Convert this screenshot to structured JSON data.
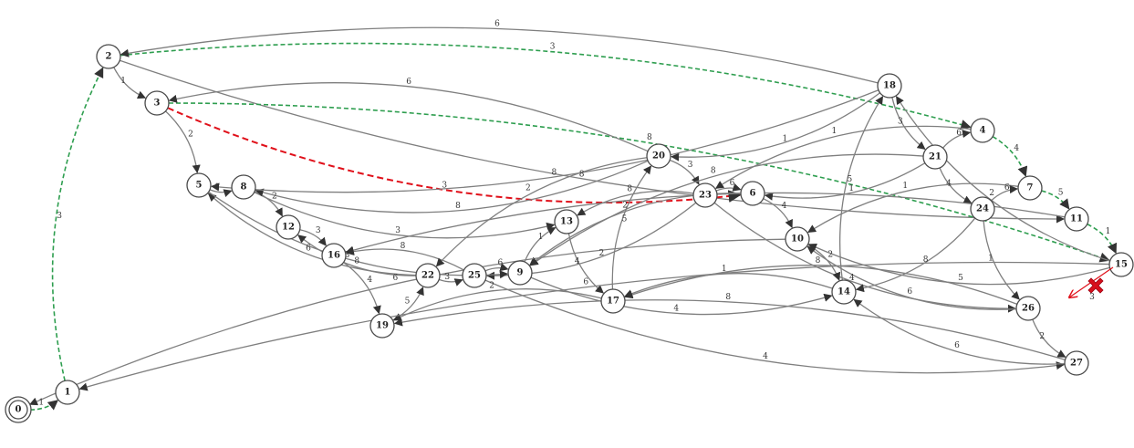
{
  "graph": {
    "nodes": [
      {
        "id": "0",
        "accepting": true
      },
      {
        "id": "1"
      },
      {
        "id": "2"
      },
      {
        "id": "3"
      },
      {
        "id": "4"
      },
      {
        "id": "5"
      },
      {
        "id": "6"
      },
      {
        "id": "7"
      },
      {
        "id": "8"
      },
      {
        "id": "9"
      },
      {
        "id": "10"
      },
      {
        "id": "11"
      },
      {
        "id": "12"
      },
      {
        "id": "13"
      },
      {
        "id": "14"
      },
      {
        "id": "15"
      },
      {
        "id": "16"
      },
      {
        "id": "17"
      },
      {
        "id": "18"
      },
      {
        "id": "19"
      },
      {
        "id": "20"
      },
      {
        "id": "21"
      },
      {
        "id": "22"
      },
      {
        "id": "23"
      },
      {
        "id": "24"
      },
      {
        "id": "25"
      },
      {
        "id": "26"
      },
      {
        "id": "27"
      }
    ],
    "edges": [
      {
        "from": "0",
        "to": "1",
        "weight": "1",
        "style": "green"
      },
      {
        "from": "1",
        "to": "2",
        "weight": "3",
        "style": "green"
      },
      {
        "from": "2",
        "to": "3",
        "weight": "1",
        "style": "normal"
      },
      {
        "from": "2",
        "to": "4",
        "weight": "3",
        "style": "green"
      },
      {
        "from": "2",
        "to": "11",
        "weight": "8",
        "style": "normal"
      },
      {
        "from": "3",
        "to": "5",
        "weight": "2",
        "style": "normal"
      },
      {
        "from": "3",
        "to": "6",
        "weight": "3",
        "style": "red"
      },
      {
        "from": "3",
        "to": "15",
        "weight": "8",
        "style": "green"
      },
      {
        "from": "5",
        "to": "8",
        "weight": "1",
        "style": "normal"
      },
      {
        "from": "8",
        "to": "12",
        "weight": "2",
        "style": "normal"
      },
      {
        "from": "8",
        "to": "13",
        "weight": "3",
        "style": "normal"
      },
      {
        "from": "12",
        "to": "16",
        "weight": "3",
        "style": "normal"
      },
      {
        "from": "13",
        "to": "17",
        "weight": "4",
        "style": "normal"
      },
      {
        "from": "16",
        "to": "19",
        "weight": "4",
        "style": "normal"
      },
      {
        "from": "19",
        "to": "22",
        "weight": "5",
        "style": "normal"
      },
      {
        "from": "22",
        "to": "12",
        "weight": "8",
        "style": "normal"
      },
      {
        "from": "22",
        "to": "25",
        "weight": "3",
        "style": "normal"
      },
      {
        "from": "22",
        "to": "5",
        "weight": "6",
        "style": "normal"
      },
      {
        "from": "25",
        "to": "16",
        "weight": "8",
        "style": "normal"
      },
      {
        "from": "25",
        "to": "9",
        "weight": "6",
        "style": "normal"
      },
      {
        "from": "25",
        "to": "27",
        "weight": "4",
        "style": "normal"
      },
      {
        "from": "9",
        "to": "13",
        "weight": "1",
        "style": "normal"
      },
      {
        "from": "9",
        "to": "14",
        "weight": "4",
        "style": "normal"
      },
      {
        "from": "17",
        "to": "20",
        "weight": "5",
        "style": "normal"
      },
      {
        "from": "17",
        "to": "19",
        "weight": "2",
        "style": "normal"
      },
      {
        "from": "20",
        "to": "8",
        "weight": "8",
        "style": "normal"
      },
      {
        "from": "20",
        "to": "22",
        "weight": "2",
        "style": "normal"
      },
      {
        "from": "20",
        "to": "23",
        "weight": "3",
        "style": "normal"
      },
      {
        "from": "20",
        "to": "3",
        "weight": "6",
        "style": "normal"
      },
      {
        "from": "23",
        "to": "6",
        "weight": "6",
        "style": "normal"
      },
      {
        "from": "23",
        "to": "13",
        "weight": "8",
        "style": "normal"
      },
      {
        "from": "23",
        "to": "25",
        "weight": "2",
        "style": "normal"
      },
      {
        "from": "23",
        "to": "26",
        "weight": "4",
        "style": "normal"
      },
      {
        "from": "6",
        "to": "10",
        "weight": "4",
        "style": "normal"
      },
      {
        "from": "6",
        "to": "9",
        "weight": "2",
        "style": "normal"
      },
      {
        "from": "10",
        "to": "14",
        "weight": "2",
        "style": "normal"
      },
      {
        "from": "10",
        "to": "0",
        "weight": "6",
        "style": "normal"
      },
      {
        "from": "14",
        "to": "18",
        "weight": "5",
        "style": "normal"
      },
      {
        "from": "14",
        "to": "17",
        "weight": "1",
        "style": "normal"
      },
      {
        "from": "18",
        "to": "20",
        "weight": "1",
        "style": "normal"
      },
      {
        "from": "18",
        "to": "21",
        "weight": "3",
        "style": "normal"
      },
      {
        "from": "18",
        "to": "5",
        "weight": "8",
        "style": "normal"
      },
      {
        "from": "18",
        "to": "2",
        "weight": "6",
        "style": "normal"
      },
      {
        "from": "21",
        "to": "4",
        "weight": "6",
        "style": "normal"
      },
      {
        "from": "21",
        "to": "24",
        "weight": "4",
        "style": "normal"
      },
      {
        "from": "21",
        "to": "6",
        "weight": "1",
        "style": "normal"
      },
      {
        "from": "21",
        "to": "9",
        "weight": "8",
        "style": "normal"
      },
      {
        "from": "4",
        "to": "7",
        "weight": "4",
        "style": "green"
      },
      {
        "from": "4",
        "to": "23",
        "weight": "1",
        "style": "normal"
      },
      {
        "from": "7",
        "to": "11",
        "weight": "5",
        "style": "green"
      },
      {
        "from": "7",
        "to": "10",
        "weight": "1",
        "style": "normal"
      },
      {
        "from": "11",
        "to": "15",
        "weight": "1",
        "style": "green"
      },
      {
        "from": "11",
        "to": "16",
        "weight": "2",
        "style": "normal"
      },
      {
        "from": "24",
        "to": "7",
        "weight": "6",
        "style": "normal"
      },
      {
        "from": "24",
        "to": "26",
        "weight": "1",
        "style": "normal"
      },
      {
        "from": "24",
        "to": "14",
        "weight": "8",
        "style": "normal"
      },
      {
        "from": "26",
        "to": "27",
        "weight": "2",
        "style": "normal"
      },
      {
        "from": "26",
        "to": "10",
        "weight": "6",
        "style": "normal"
      },
      {
        "from": "26",
        "to": "17",
        "weight": "8",
        "style": "normal"
      },
      {
        "from": "27",
        "to": "14",
        "weight": "6",
        "style": "normal"
      },
      {
        "from": "27",
        "to": "19",
        "weight": "8",
        "style": "normal"
      },
      {
        "from": "15",
        "to": "10",
        "weight": "5",
        "style": "normal"
      },
      {
        "from": "15",
        "to": "1",
        "weight": "6",
        "style": "normal"
      },
      {
        "from": "15",
        "to": "18",
        "weight": "2",
        "style": "normal"
      },
      {
        "from": "5",
        "to": "9",
        "weight": "3",
        "style": "normal"
      }
    ],
    "blocked_edge": {
      "from": "15",
      "weight": "3",
      "marker_icon": "red-x-icon"
    },
    "colors": {
      "path_green": "#2e9e4f",
      "path_red": "#e0101a",
      "edge": "#7f7f7f",
      "blocked": "#e0101a"
    }
  }
}
